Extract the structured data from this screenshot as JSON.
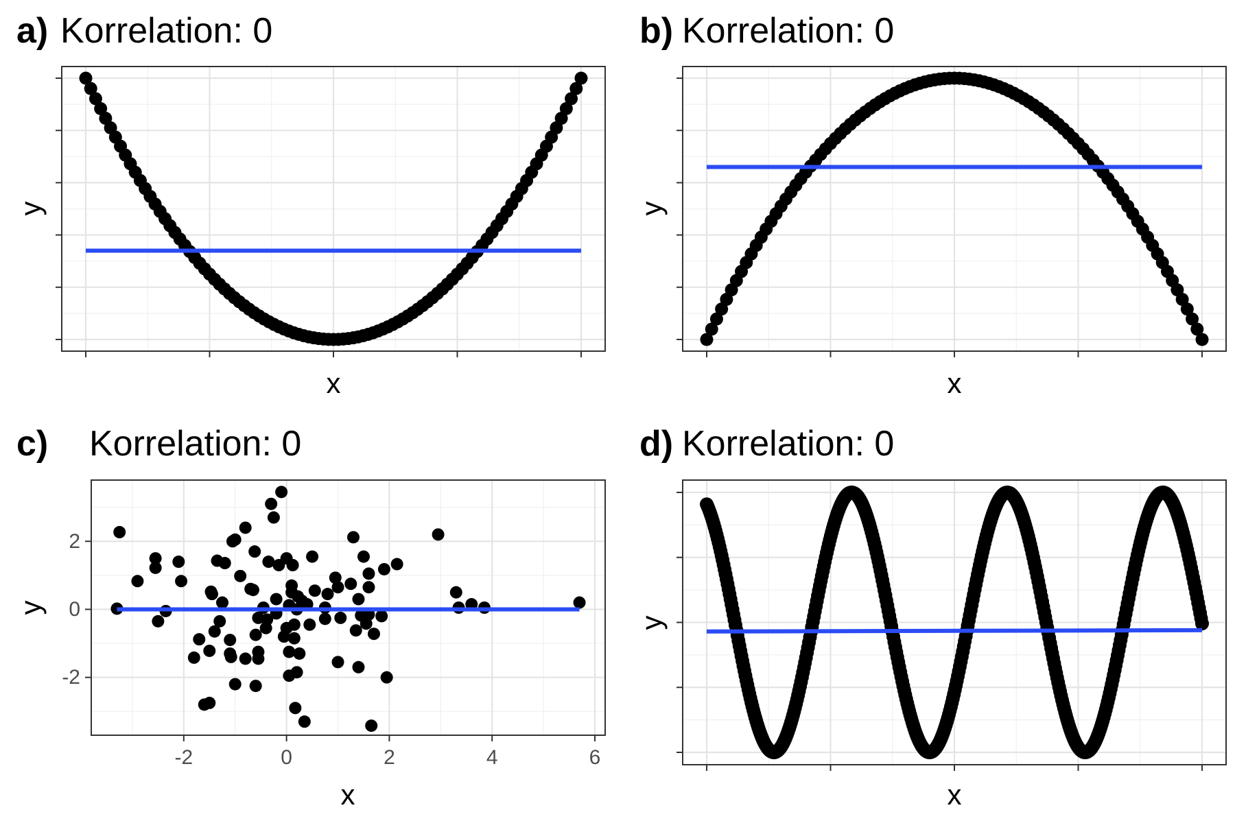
{
  "chart_data": [
    {
      "type": "scatter",
      "panel_tag": "a)",
      "title": "Korrelation: 0",
      "xlabel": "x",
      "ylabel": "y",
      "grid": true,
      "tick_labels_shown": false,
      "marker_color": "#000000",
      "fit_line_color": "#2b4cf4",
      "xlim": [
        -10,
        10
      ],
      "ylim": [
        0,
        100
      ],
      "x_ticks": [
        -10,
        -5,
        0,
        5,
        10
      ],
      "y_ticks": [
        0,
        20,
        40,
        60,
        80,
        100
      ],
      "series": [
        {
          "kind": "points",
          "function": "y = x^2",
          "x_range": [
            -10,
            10
          ],
          "n_points": 101
        },
        {
          "kind": "fit_line",
          "y_start": 34,
          "y_end": 34
        }
      ]
    },
    {
      "type": "scatter",
      "panel_tag": "b)",
      "title": "Korrelation: 0",
      "xlabel": "x",
      "ylabel": "y",
      "grid": true,
      "tick_labels_shown": false,
      "marker_color": "#000000",
      "fit_line_color": "#2b4cf4",
      "xlim": [
        -10,
        10
      ],
      "ylim": [
        -100,
        0
      ],
      "x_ticks": [
        -10,
        -5,
        0,
        5,
        10
      ],
      "y_ticks": [
        -100,
        -80,
        -60,
        -40,
        -20,
        0
      ],
      "series": [
        {
          "kind": "points",
          "function": "y = -x^2",
          "x_range": [
            -10,
            10
          ],
          "n_points": 101
        },
        {
          "kind": "fit_line",
          "y_start": -34,
          "y_end": -34
        }
      ]
    },
    {
      "type": "scatter",
      "panel_tag": "c)",
      "title": "Korrelation: 0",
      "xlabel": "x",
      "ylabel": "y",
      "grid": true,
      "tick_labels_shown": true,
      "marker_color": "#000000",
      "fit_line_color": "#2b4cf4",
      "xlim": [
        -3.8,
        6.2
      ],
      "ylim": [
        -3.7,
        3.8
      ],
      "x_ticks": [
        -2,
        0,
        2,
        4,
        6
      ],
      "x_tick_labels": [
        "-2",
        "0",
        "2",
        "4",
        "6"
      ],
      "y_ticks": [
        -2,
        0,
        2
      ],
      "y_tick_labels": [
        "-2",
        "0",
        "2"
      ],
      "fit_line": {
        "x_start": -3.3,
        "x_end": 5.7,
        "y_start": 0.0,
        "y_end": 0.0
      },
      "points": [
        [
          -3.3,
          0.02
        ],
        [
          -3.25,
          2.27
        ],
        [
          -2.9,
          0.83
        ],
        [
          -2.55,
          1.5
        ],
        [
          -2.55,
          1.22
        ],
        [
          -2.5,
          -0.35
        ],
        [
          -2.35,
          -0.05
        ],
        [
          -2.1,
          1.4
        ],
        [
          -2.05,
          0.83
        ],
        [
          -1.8,
          -1.42
        ],
        [
          -1.7,
          -0.88
        ],
        [
          -1.6,
          -2.8
        ],
        [
          -1.5,
          -1.22
        ],
        [
          -1.5,
          -2.75
        ],
        [
          -1.47,
          0.52
        ],
        [
          -1.45,
          0.45
        ],
        [
          -1.4,
          -0.65
        ],
        [
          -1.35,
          1.43
        ],
        [
          -1.3,
          -0.35
        ],
        [
          -1.25,
          0.2
        ],
        [
          -1.2,
          1.36
        ],
        [
          -1.1,
          -0.9
        ],
        [
          -1.1,
          -1.3
        ],
        [
          -1.08,
          -1.4
        ],
        [
          -1.05,
          2.0
        ],
        [
          -1.0,
          2.05
        ],
        [
          -1.0,
          -2.2
        ],
        [
          -0.9,
          0.98
        ],
        [
          -0.8,
          2.4
        ],
        [
          -0.8,
          -1.45
        ],
        [
          -0.7,
          0.6
        ],
        [
          -0.65,
          0.57
        ],
        [
          -0.62,
          1.7
        ],
        [
          -0.6,
          -2.25
        ],
        [
          -0.6,
          -0.75
        ],
        [
          -0.55,
          -1.25
        ],
        [
          -0.55,
          -1.45
        ],
        [
          -0.55,
          -0.25
        ],
        [
          -0.45,
          0.05
        ],
        [
          -0.4,
          -0.55
        ],
        [
          -0.38,
          -0.3
        ],
        [
          -0.35,
          1.4
        ],
        [
          -0.3,
          3.1
        ],
        [
          -0.25,
          2.7
        ],
        [
          -0.2,
          0.3
        ],
        [
          -0.2,
          -0.12
        ],
        [
          -0.15,
          1.3
        ],
        [
          -0.1,
          3.45
        ],
        [
          -0.05,
          -0.8
        ],
        [
          0.0,
          -0.55
        ],
        [
          0.0,
          1.5
        ],
        [
          0.05,
          -1.25
        ],
        [
          0.05,
          0.12
        ],
        [
          0.05,
          -1.95
        ],
        [
          0.1,
          0.7
        ],
        [
          0.1,
          0.5
        ],
        [
          0.12,
          1.3
        ],
        [
          0.15,
          -0.45
        ],
        [
          0.15,
          -0.85
        ],
        [
          0.17,
          -2.9
        ],
        [
          0.2,
          -1.85
        ],
        [
          0.2,
          0.0
        ],
        [
          0.22,
          0.38
        ],
        [
          0.25,
          -1.3
        ],
        [
          0.3,
          0.25
        ],
        [
          0.35,
          -3.3
        ],
        [
          0.4,
          0.15
        ],
        [
          0.45,
          -0.45
        ],
        [
          0.5,
          1.55
        ],
        [
          0.55,
          0.55
        ],
        [
          0.75,
          -0.28
        ],
        [
          0.75,
          0.05
        ],
        [
          0.8,
          0.45
        ],
        [
          0.95,
          0.93
        ],
        [
          1.0,
          -1.55
        ],
        [
          1.0,
          0.65
        ],
        [
          1.05,
          -0.25
        ],
        [
          1.25,
          0.75
        ],
        [
          1.3,
          2.12
        ],
        [
          1.35,
          -0.62
        ],
        [
          1.4,
          -1.7
        ],
        [
          1.4,
          0.3
        ],
        [
          1.45,
          -0.18
        ],
        [
          1.5,
          1.55
        ],
        [
          1.55,
          -0.42
        ],
        [
          1.6,
          0.65
        ],
        [
          1.6,
          1.05
        ],
        [
          1.6,
          -0.15
        ],
        [
          1.65,
          -3.42
        ],
        [
          1.7,
          -0.72
        ],
        [
          1.85,
          -0.2
        ],
        [
          1.9,
          1.18
        ],
        [
          1.95,
          -2.0
        ],
        [
          2.15,
          1.33
        ],
        [
          2.95,
          2.2
        ],
        [
          3.3,
          0.5
        ],
        [
          3.35,
          0.05
        ],
        [
          3.6,
          0.15
        ],
        [
          3.85,
          0.05
        ],
        [
          5.7,
          0.2
        ]
      ]
    },
    {
      "type": "scatter",
      "panel_tag": "d)",
      "title": "Korrelation: 0",
      "xlabel": "x",
      "ylabel": "y",
      "grid": true,
      "tick_labels_shown": false,
      "marker_color": "#000000",
      "fit_line_color": "#2b4cf4",
      "xlim": [
        0,
        20
      ],
      "ylim": [
        -1,
        1
      ],
      "x_ticks": [
        0,
        5,
        10,
        15,
        20
      ],
      "y_ticks": [
        -1,
        -0.5,
        0,
        0.5,
        1
      ],
      "series": [
        {
          "kind": "points",
          "function": "y = sin(x + 2)",
          "x_range": [
            0,
            20
          ],
          "n_points": 500
        },
        {
          "kind": "fit_line",
          "y_start": -0.07,
          "y_end": -0.06
        }
      ]
    }
  ]
}
